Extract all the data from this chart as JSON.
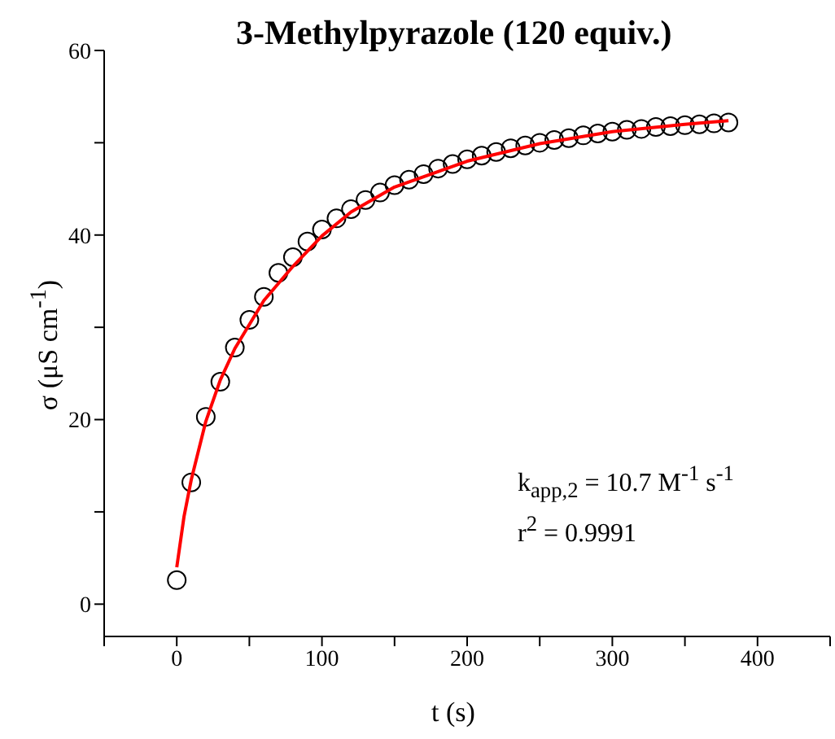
{
  "chart_data": {
    "type": "scatter",
    "title": "3-Methylpyrazole (120 equiv.)",
    "xlabel": "t (s)",
    "ylabel": "σ (μS cm$^{-1}$)",
    "annotations": [
      "k$_{app,2}$ = 10.7 M$^{-1}$ s$^{-1}$",
      "r$^{2}$ = 0.9991"
    ],
    "xlim": [
      -50,
      450
    ],
    "xticks": [
      {
        "value": -50,
        "label": null
      },
      0,
      {
        "value": 50,
        "label": null
      },
      100,
      {
        "value": 150,
        "label": null
      },
      200,
      {
        "value": 250,
        "label": null
      },
      300,
      {
        "value": 350,
        "label": null
      },
      400,
      {
        "value": 450,
        "label": null
      }
    ],
    "ylim": [
      -3.5,
      60
    ],
    "yticks": [
      0,
      {
        "value": 10,
        "label": null
      },
      20,
      {
        "value": 30,
        "label": null
      },
      40,
      {
        "value": 50,
        "label": null
      },
      60
    ],
    "grid": false,
    "legend": false,
    "marker": "circle",
    "series": [
      {
        "type": "scatter",
        "color": "#000000",
        "x": [
          0,
          10,
          20,
          30,
          40,
          50,
          60,
          70,
          80,
          90,
          100,
          110,
          120,
          130,
          140,
          150,
          160,
          170,
          180,
          190,
          200,
          210,
          220,
          230,
          240,
          250,
          260,
          270,
          280,
          290,
          300,
          310,
          320,
          330,
          340,
          350,
          360,
          370,
          380
        ],
        "values": [
          2.6,
          13.2,
          20.3,
          24.1,
          27.8,
          30.8,
          33.3,
          35.9,
          37.6,
          39.3,
          40.6,
          41.8,
          42.8,
          43.8,
          44.6,
          45.4,
          46.0,
          46.6,
          47.2,
          47.7,
          48.2,
          48.6,
          49.0,
          49.4,
          49.7,
          50.0,
          50.3,
          50.5,
          50.8,
          51.0,
          51.2,
          51.4,
          51.5,
          51.7,
          51.8,
          51.9,
          52.0,
          52.1,
          52.2
        ]
      },
      {
        "type": "line",
        "color": "#ff0000",
        "marker": "none",
        "line_style": "solid",
        "x": [
          0,
          5,
          10,
          20,
          30,
          40,
          60,
          80,
          100,
          120,
          150,
          200,
          250,
          300,
          350,
          380
        ],
        "values": [
          4.0,
          9.5,
          13.5,
          19.8,
          24.3,
          27.7,
          32.9,
          36.6,
          39.9,
          42.5,
          45.2,
          48.0,
          49.9,
          51.2,
          52.0,
          52.4
        ]
      }
    ]
  }
}
